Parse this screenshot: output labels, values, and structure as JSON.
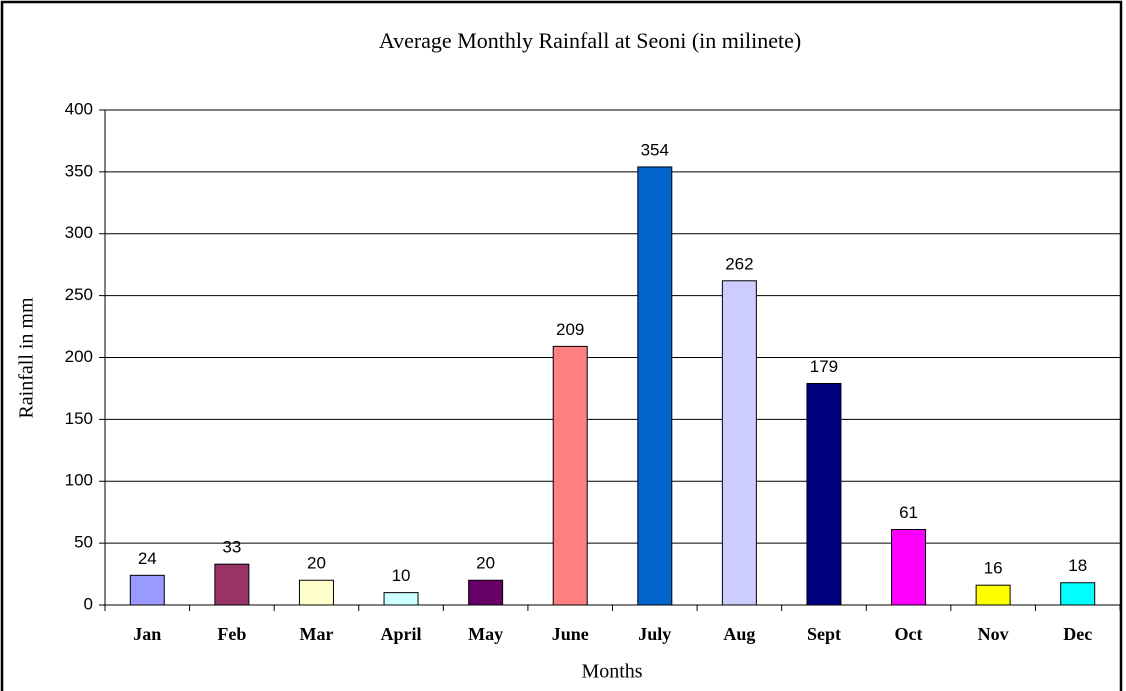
{
  "chart_data": {
    "type": "bar",
    "title": "Average Monthly Rainfall at Seoni (in milinete)",
    "x_label": "Months",
    "y_label": "Rainfall in mm",
    "categories": [
      "Jan",
      "Feb",
      "Mar",
      "April",
      "May",
      "June",
      "July",
      "Aug",
      "Sept",
      "Oct",
      "Nov",
      "Dec"
    ],
    "values": [
      24,
      33,
      20,
      10,
      20,
      209,
      354,
      262,
      179,
      61,
      16,
      18
    ],
    "colors": [
      "#9999ff",
      "#993366",
      "#ffffcc",
      "#ccffff",
      "#660066",
      "#ff8080",
      "#0066cc",
      "#ccccff",
      "#000080",
      "#ff00ff",
      "#ffff00",
      "#00ffff"
    ],
    "ylim": [
      0,
      400
    ],
    "yticks": [
      0,
      50,
      100,
      150,
      200,
      250,
      300,
      350,
      400
    ],
    "grid": true
  }
}
